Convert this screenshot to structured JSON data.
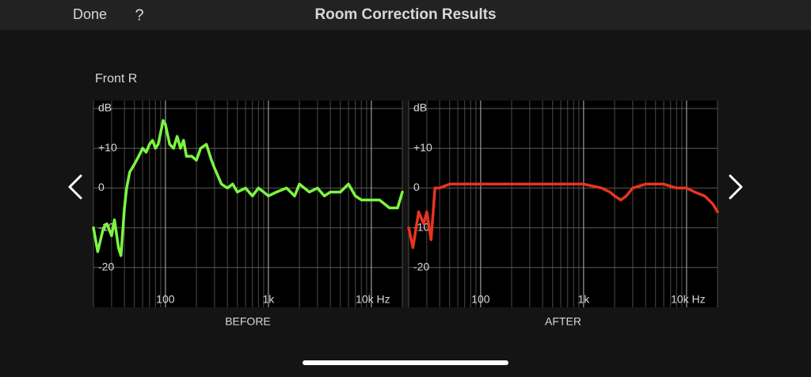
{
  "header": {
    "done": "Done",
    "help": "?",
    "title": "Room Correction Results"
  },
  "speaker": "Front R",
  "chart_data": [
    {
      "type": "line",
      "xlabel": "BEFORE",
      "color": "#7cf542",
      "xscale": "log",
      "xlim": [
        20,
        20000
      ],
      "ylim": [
        -30,
        22
      ],
      "xticks": [
        100,
        {
          "value": 1000,
          "label": "1k"
        },
        {
          "value": 10000,
          "label": "10k Hz"
        }
      ],
      "xgrid_minor": [
        20,
        30,
        40,
        50,
        60,
        70,
        80,
        90,
        200,
        300,
        400,
        500,
        600,
        700,
        800,
        900,
        2000,
        3000,
        4000,
        5000,
        6000,
        7000,
        8000,
        9000,
        20000
      ],
      "yticks": [
        {
          "value": 20,
          "label": "dB"
        },
        {
          "value": 10,
          "label": "+10"
        },
        0,
        -10,
        -20
      ],
      "grid": true,
      "x": [
        20,
        22,
        25,
        27,
        30,
        32,
        35,
        37,
        40,
        42,
        45,
        50,
        55,
        60,
        65,
        70,
        75,
        80,
        85,
        90,
        95,
        100,
        110,
        120,
        130,
        140,
        150,
        160,
        180,
        200,
        220,
        250,
        280,
        300,
        350,
        400,
        450,
        500,
        600,
        700,
        800,
        900,
        1000,
        1200,
        1500,
        1800,
        2000,
        2500,
        3000,
        3500,
        4000,
        5000,
        6000,
        7000,
        8000,
        10000,
        12000,
        15000,
        18000,
        20000
      ],
      "values": [
        -10,
        -16,
        -10,
        -9,
        -12,
        -8,
        -15,
        -17,
        -5,
        0,
        4,
        6,
        8,
        10,
        9,
        11,
        12,
        10,
        11,
        14,
        17,
        16,
        11,
        10,
        13,
        10,
        12,
        8,
        8,
        7,
        10,
        11,
        7,
        5,
        1,
        0,
        1,
        -1,
        0,
        -2,
        0,
        -1,
        -2,
        -1,
        0,
        -2,
        1,
        -1,
        0,
        -2,
        -1,
        -1,
        1,
        -2,
        -3,
        -3,
        -3,
        -5,
        -5,
        -1
      ]
    },
    {
      "type": "line",
      "xlabel": "AFTER",
      "color": "#e8341f",
      "xscale": "log",
      "xlim": [
        20,
        20000
      ],
      "ylim": [
        -30,
        22
      ],
      "xticks": [
        100,
        {
          "value": 1000,
          "label": "1k"
        },
        {
          "value": 10000,
          "label": "10k Hz"
        }
      ],
      "xgrid_minor": [
        20,
        30,
        40,
        50,
        60,
        70,
        80,
        90,
        200,
        300,
        400,
        500,
        600,
        700,
        800,
        900,
        2000,
        3000,
        4000,
        5000,
        6000,
        7000,
        8000,
        9000,
        20000
      ],
      "yticks": [
        {
          "value": 20,
          "label": "dB"
        },
        {
          "value": 10,
          "label": "+10"
        },
        0,
        -10,
        -20
      ],
      "grid": true,
      "x": [
        20,
        22,
        25,
        28,
        30,
        33,
        36,
        40,
        50,
        100,
        200,
        500,
        1000,
        1500,
        1800,
        2000,
        2300,
        2600,
        3000,
        4000,
        6000,
        8000,
        10000,
        12000,
        15000,
        18000,
        20000
      ],
      "values": [
        -10,
        -15,
        -6,
        -9,
        -6,
        -13,
        0,
        0,
        1,
        1,
        1,
        1,
        1,
        0,
        -1,
        -2,
        -3,
        -2,
        0,
        1,
        1,
        0,
        0,
        -1,
        -2,
        -4,
        -6
      ]
    }
  ]
}
